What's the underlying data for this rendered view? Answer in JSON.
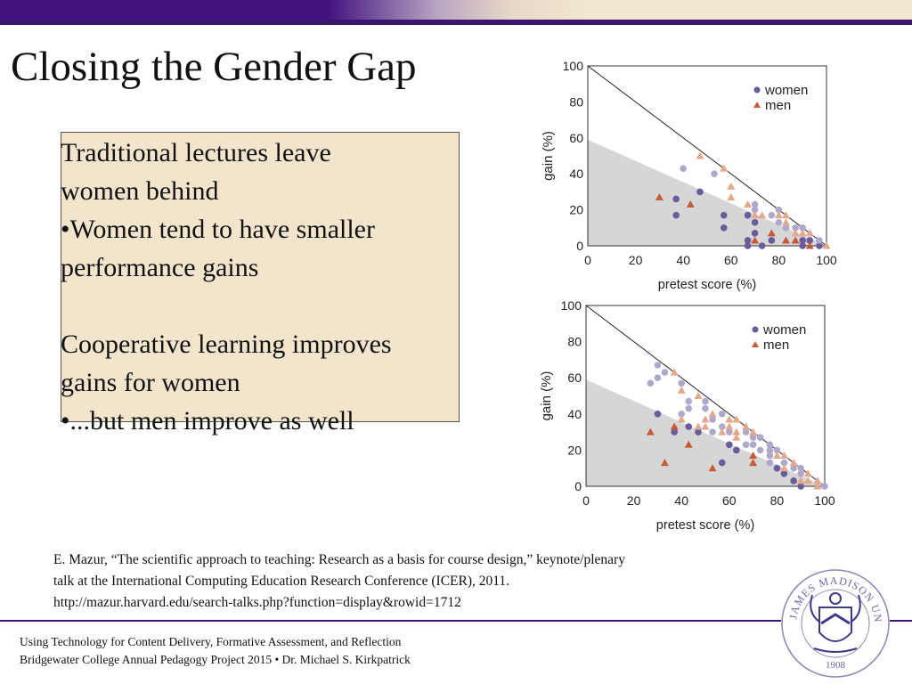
{
  "slide": {
    "title": "Closing the Gender Gap",
    "box_lines": [
      "Traditional lectures leave",
      "women behind",
      "•Women tend to have smaller",
      "performance gains",
      "Cooperative learning improves",
      "gains for women",
      "•...but men improve as well"
    ],
    "citation_lines": [
      "E. Mazur, “The scientific approach to teaching: Research as a basis for course design,” keynote/plenary",
      "talk at the International Computing Education Research Conference (ICER), 2011.",
      "http://mazur.harvard.edu/search-talks.php?function=display&rowid=1712"
    ],
    "footer_lines": [
      "Using Technology for Content Delivery, Formative Assessment, and Reflection",
      "Bridgewater College Annual Pedagogy Project 2015 • Dr. Michael S. Kirkpatrick"
    ],
    "logo_text": "JAMES MADISON UNIVERSITY 1908",
    "colors": {
      "brand_purple": "#43147f",
      "box_bg": "#f3e5cc",
      "women": "#6a5b9a",
      "women_light": "#b0a8cc",
      "men": "#c85a3a",
      "men_light": "#e4a98c",
      "shade": "#d5d6d6"
    }
  },
  "chart_data": [
    {
      "type": "scatter",
      "xlabel": "pretest score (%)",
      "ylabel": "gain (%)",
      "xlim": [
        0,
        100
      ],
      "ylim": [
        0,
        100
      ],
      "xticks": [
        "0",
        "20",
        "40",
        "60",
        "80",
        "100"
      ],
      "yticks": [
        "0",
        "20",
        "40",
        "60",
        "80",
        "100"
      ],
      "legend": "top-right",
      "grid": false,
      "reference_line": [
        [
          0,
          100
        ],
        [
          100,
          0
        ]
      ],
      "shaded_region": [
        [
          0,
          0
        ],
        [
          0,
          59
        ],
        [
          100,
          0
        ]
      ],
      "series": [
        {
          "name": "women",
          "marker": "circle",
          "shade": "dark",
          "points": [
            [
              37,
              26
            ],
            [
              37,
              17
            ],
            [
              47,
              30
            ],
            [
              57,
              17
            ],
            [
              57,
              10
            ],
            [
              67,
              17
            ],
            [
              67,
              3
            ],
            [
              67,
              0
            ],
            [
              70,
              13
            ],
            [
              70,
              7
            ],
            [
              73,
              0
            ],
            [
              77,
              3
            ],
            [
              90,
              3
            ],
            [
              90,
              0
            ],
            [
              93,
              3
            ],
            [
              97,
              0
            ]
          ]
        },
        {
          "name": "women",
          "marker": "circle",
          "shade": "light",
          "points": [
            [
              40,
              43
            ],
            [
              53,
              40
            ],
            [
              70,
              23
            ],
            [
              70,
              20
            ],
            [
              77,
              17
            ],
            [
              80,
              20
            ],
            [
              80,
              13
            ],
            [
              83,
              10
            ],
            [
              87,
              10
            ],
            [
              90,
              10
            ],
            [
              97,
              3
            ]
          ]
        },
        {
          "name": "men",
          "marker": "triangle",
          "shade": "dark",
          "points": [
            [
              30,
              27
            ],
            [
              43,
              23
            ],
            [
              70,
              3
            ],
            [
              77,
              7
            ],
            [
              83,
              3
            ],
            [
              87,
              3
            ],
            [
              93,
              0
            ]
          ]
        },
        {
          "name": "men",
          "marker": "triangle",
          "shade": "light",
          "points": [
            [
              47,
              50
            ],
            [
              57,
              43
            ],
            [
              60,
              33
            ],
            [
              60,
              27
            ],
            [
              67,
              23
            ],
            [
              70,
              17
            ],
            [
              73,
              17
            ],
            [
              80,
              17
            ],
            [
              83,
              17
            ],
            [
              83,
              13
            ],
            [
              87,
              7
            ],
            [
              90,
              7
            ],
            [
              93,
              7
            ],
            [
              100,
              0
            ]
          ]
        }
      ]
    },
    {
      "type": "scatter",
      "xlabel": "pretest score (%)",
      "ylabel": "gain (%)",
      "xlim": [
        0,
        100
      ],
      "ylim": [
        0,
        100
      ],
      "xticks": [
        "0",
        "20",
        "40",
        "60",
        "80",
        "100"
      ],
      "yticks": [
        "0",
        "20",
        "40",
        "60",
        "80",
        "100"
      ],
      "legend": "top-right",
      "grid": false,
      "reference_line": [
        [
          0,
          100
        ],
        [
          100,
          0
        ]
      ],
      "shaded_region": [
        [
          0,
          0
        ],
        [
          0,
          59
        ],
        [
          100,
          0
        ]
      ],
      "series": [
        {
          "name": "women",
          "marker": "circle",
          "shade": "dark",
          "points": [
            [
              30,
              40
            ],
            [
              37,
              30
            ],
            [
              43,
              33
            ],
            [
              47,
              30
            ],
            [
              57,
              13
            ],
            [
              60,
              23
            ],
            [
              63,
              20
            ],
            [
              80,
              10
            ],
            [
              83,
              7
            ],
            [
              87,
              3
            ],
            [
              90,
              0
            ]
          ]
        },
        {
          "name": "women",
          "marker": "circle",
          "shade": "light",
          "points": [
            [
              27,
              57
            ],
            [
              30,
              67
            ],
            [
              30,
              60
            ],
            [
              33,
              63
            ],
            [
              40,
              57
            ],
            [
              40,
              40
            ],
            [
              43,
              47
            ],
            [
              43,
              43
            ],
            [
              50,
              47
            ],
            [
              50,
              43
            ],
            [
              53,
              37
            ],
            [
              53,
              30
            ],
            [
              57,
              40
            ],
            [
              57,
              33
            ],
            [
              60,
              30
            ],
            [
              67,
              30
            ],
            [
              67,
              23
            ],
            [
              70,
              27
            ],
            [
              70,
              23
            ],
            [
              73,
              27
            ],
            [
              73,
              20
            ],
            [
              77,
              23
            ],
            [
              77,
              20
            ],
            [
              77,
              17
            ],
            [
              77,
              13
            ],
            [
              80,
              20
            ],
            [
              83,
              13
            ],
            [
              87,
              10
            ],
            [
              90,
              10
            ],
            [
              90,
              7
            ],
            [
              100,
              0
            ]
          ]
        },
        {
          "name": "men",
          "marker": "triangle",
          "shade": "dark",
          "points": [
            [
              27,
              30
            ],
            [
              33,
              13
            ],
            [
              37,
              33
            ],
            [
              43,
              23
            ],
            [
              53,
              10
            ],
            [
              70,
              17
            ],
            [
              70,
              13
            ]
          ]
        },
        {
          "name": "men",
          "marker": "triangle",
          "shade": "light",
          "points": [
            [
              37,
              63
            ],
            [
              40,
              53
            ],
            [
              40,
              37
            ],
            [
              47,
              50
            ],
            [
              47,
              33
            ],
            [
              50,
              37
            ],
            [
              50,
              33
            ],
            [
              53,
              40
            ],
            [
              57,
              30
            ],
            [
              60,
              37
            ],
            [
              60,
              33
            ],
            [
              63,
              37
            ],
            [
              63,
              30
            ],
            [
              63,
              27
            ],
            [
              67,
              33
            ],
            [
              70,
              30
            ],
            [
              80,
              17
            ],
            [
              83,
              17
            ],
            [
              83,
              10
            ],
            [
              87,
              13
            ],
            [
              90,
              3
            ],
            [
              93,
              7
            ],
            [
              93,
              3
            ],
            [
              97,
              3
            ],
            [
              97,
              0
            ]
          ]
        }
      ]
    }
  ]
}
